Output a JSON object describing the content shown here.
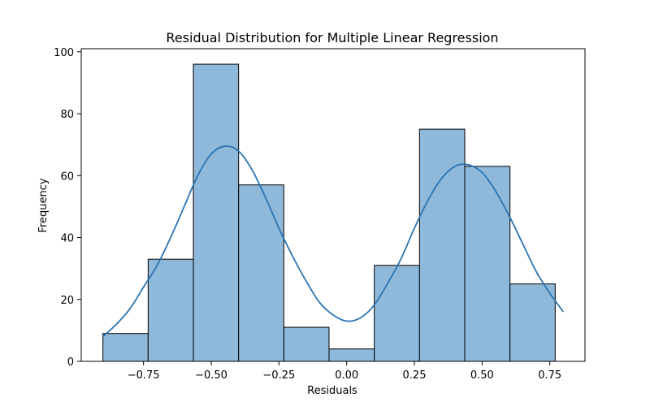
{
  "chart_data": {
    "type": "bar",
    "title": "Residual Distribution for Multiple Linear Regression",
    "xlabel": "Residuals",
    "ylabel": "Frequency",
    "xlim": [
      -0.98,
      0.88
    ],
    "ylim": [
      0,
      101
    ],
    "xticks": [
      -0.75,
      -0.5,
      -0.25,
      0.0,
      0.25,
      0.5,
      0.75
    ],
    "xtick_labels": [
      "−0.75",
      "−0.50",
      "−0.25",
      "0.00",
      "0.25",
      "0.50",
      "0.75"
    ],
    "yticks": [
      0,
      20,
      40,
      60,
      80,
      100
    ],
    "ytick_labels": [
      "0",
      "20",
      "40",
      "60",
      "80",
      "100"
    ],
    "bin_edges": [
      -0.9,
      -0.733,
      -0.566,
      -0.399,
      -0.232,
      -0.065,
      0.102,
      0.269,
      0.436,
      0.603,
      0.77
    ],
    "values": [
      9,
      33,
      96,
      57,
      11,
      4,
      31,
      75,
      63,
      25
    ],
    "kde": {
      "x": [
        -0.9,
        -0.85,
        -0.8,
        -0.75,
        -0.7,
        -0.65,
        -0.6,
        -0.55,
        -0.5,
        -0.45,
        -0.4,
        -0.35,
        -0.3,
        -0.25,
        -0.2,
        -0.15,
        -0.1,
        -0.05,
        0.0,
        0.05,
        0.1,
        0.15,
        0.2,
        0.25,
        0.3,
        0.35,
        0.4,
        0.45,
        0.5,
        0.55,
        0.6,
        0.65,
        0.7,
        0.75,
        0.8
      ],
      "y": [
        8,
        12,
        17,
        24,
        31,
        40,
        50,
        60,
        67,
        69.5,
        68,
        62,
        53,
        43,
        34,
        26,
        19,
        15,
        13,
        14,
        18,
        25,
        33,
        43,
        52,
        59,
        63,
        63.5,
        61,
        55,
        47,
        38,
        29,
        22,
        16
      ]
    },
    "colors": {
      "bar_fill": "#8fb9da",
      "bar_edge": "#000000",
      "kde_line": "#2b74b2"
    },
    "grid": false,
    "legend": "none"
  }
}
